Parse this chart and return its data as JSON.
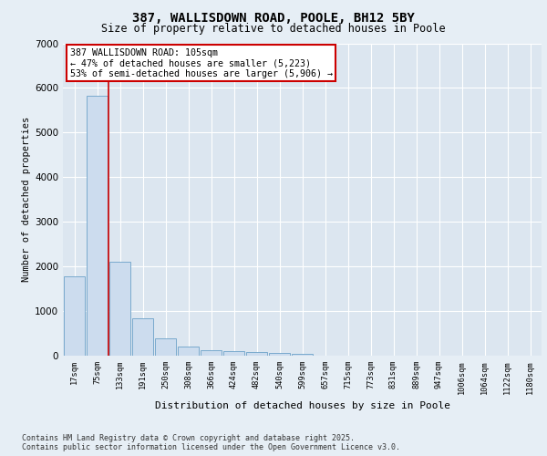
{
  "title_line1": "387, WALLISDOWN ROAD, POOLE, BH12 5BY",
  "title_line2": "Size of property relative to detached houses in Poole",
  "xlabel": "Distribution of detached houses by size in Poole",
  "ylabel": "Number of detached properties",
  "categories": [
    "17sqm",
    "75sqm",
    "133sqm",
    "191sqm",
    "250sqm",
    "308sqm",
    "366sqm",
    "424sqm",
    "482sqm",
    "540sqm",
    "599sqm",
    "657sqm",
    "715sqm",
    "773sqm",
    "831sqm",
    "889sqm",
    "947sqm",
    "1006sqm",
    "1064sqm",
    "1122sqm",
    "1180sqm"
  ],
  "values": [
    1780,
    5830,
    2100,
    840,
    380,
    210,
    130,
    100,
    80,
    60,
    50,
    0,
    0,
    0,
    0,
    0,
    0,
    0,
    0,
    0,
    0
  ],
  "bar_color": "#ccdcee",
  "bar_edge_color": "#7aaace",
  "vline_x": 1.5,
  "vline_color": "#cc0000",
  "annotation_text": "387 WALLISDOWN ROAD: 105sqm\n← 47% of detached houses are smaller (5,223)\n53% of semi-detached houses are larger (5,906) →",
  "annotation_box_color": "#ffffff",
  "annotation_box_edge": "#cc0000",
  "ylim": [
    0,
    7000
  ],
  "yticks": [
    0,
    1000,
    2000,
    3000,
    4000,
    5000,
    6000,
    7000
  ],
  "background_color": "#e6eef5",
  "plot_bg_color": "#dce6f0",
  "grid_color": "#ffffff",
  "footer_line1": "Contains HM Land Registry data © Crown copyright and database right 2025.",
  "footer_line2": "Contains public sector information licensed under the Open Government Licence v3.0."
}
